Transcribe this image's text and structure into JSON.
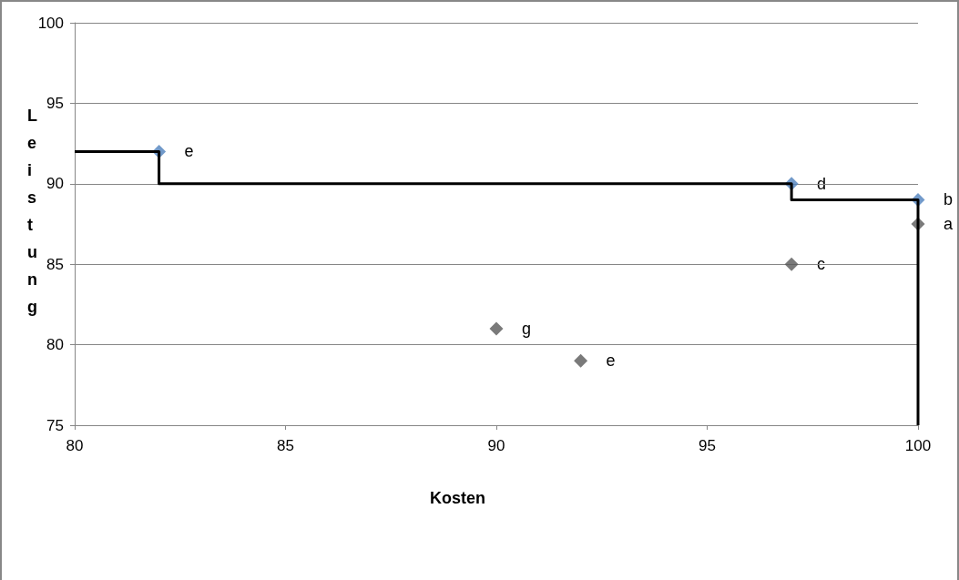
{
  "chart_data": {
    "type": "scatter",
    "xlabel": "Kosten",
    "ylabel": "Leistung",
    "xlim": [
      80,
      100
    ],
    "xticks": [
      80,
      85,
      90,
      95,
      100
    ],
    "ylim": [
      75,
      100
    ],
    "yticks": [
      75,
      80,
      85,
      90,
      95,
      100
    ],
    "grid": "y",
    "marker": "diamond",
    "series": [
      {
        "type": "line",
        "color": "#000000",
        "x": [
          80,
          82,
          82,
          97,
          97,
          100,
          100
        ],
        "values": [
          92,
          92,
          90,
          90,
          89,
          89,
          75
        ],
        "marker": "none",
        "line_style": "solid"
      },
      {
        "color": "#4f81bd",
        "x": [
          82,
          97,
          100
        ],
        "values": [
          92,
          90,
          89
        ]
      },
      {
        "color": "#595959",
        "x": [
          100,
          97,
          90,
          92
        ],
        "values": [
          87.5,
          85,
          81,
          79
        ]
      }
    ],
    "annotations": [
      {
        "text": "e",
        "x": 82,
        "y": 92
      },
      {
        "text": "d",
        "x": 97,
        "y": 90
      },
      {
        "text": "b",
        "x": 100,
        "y": 89
      },
      {
        "text": "a",
        "x": 100,
        "y": 87.5
      },
      {
        "text": "c",
        "x": 97,
        "y": 85
      },
      {
        "text": "g",
        "x": 90,
        "y": 81
      },
      {
        "text": "e",
        "x": 92,
        "y": 79
      }
    ]
  }
}
